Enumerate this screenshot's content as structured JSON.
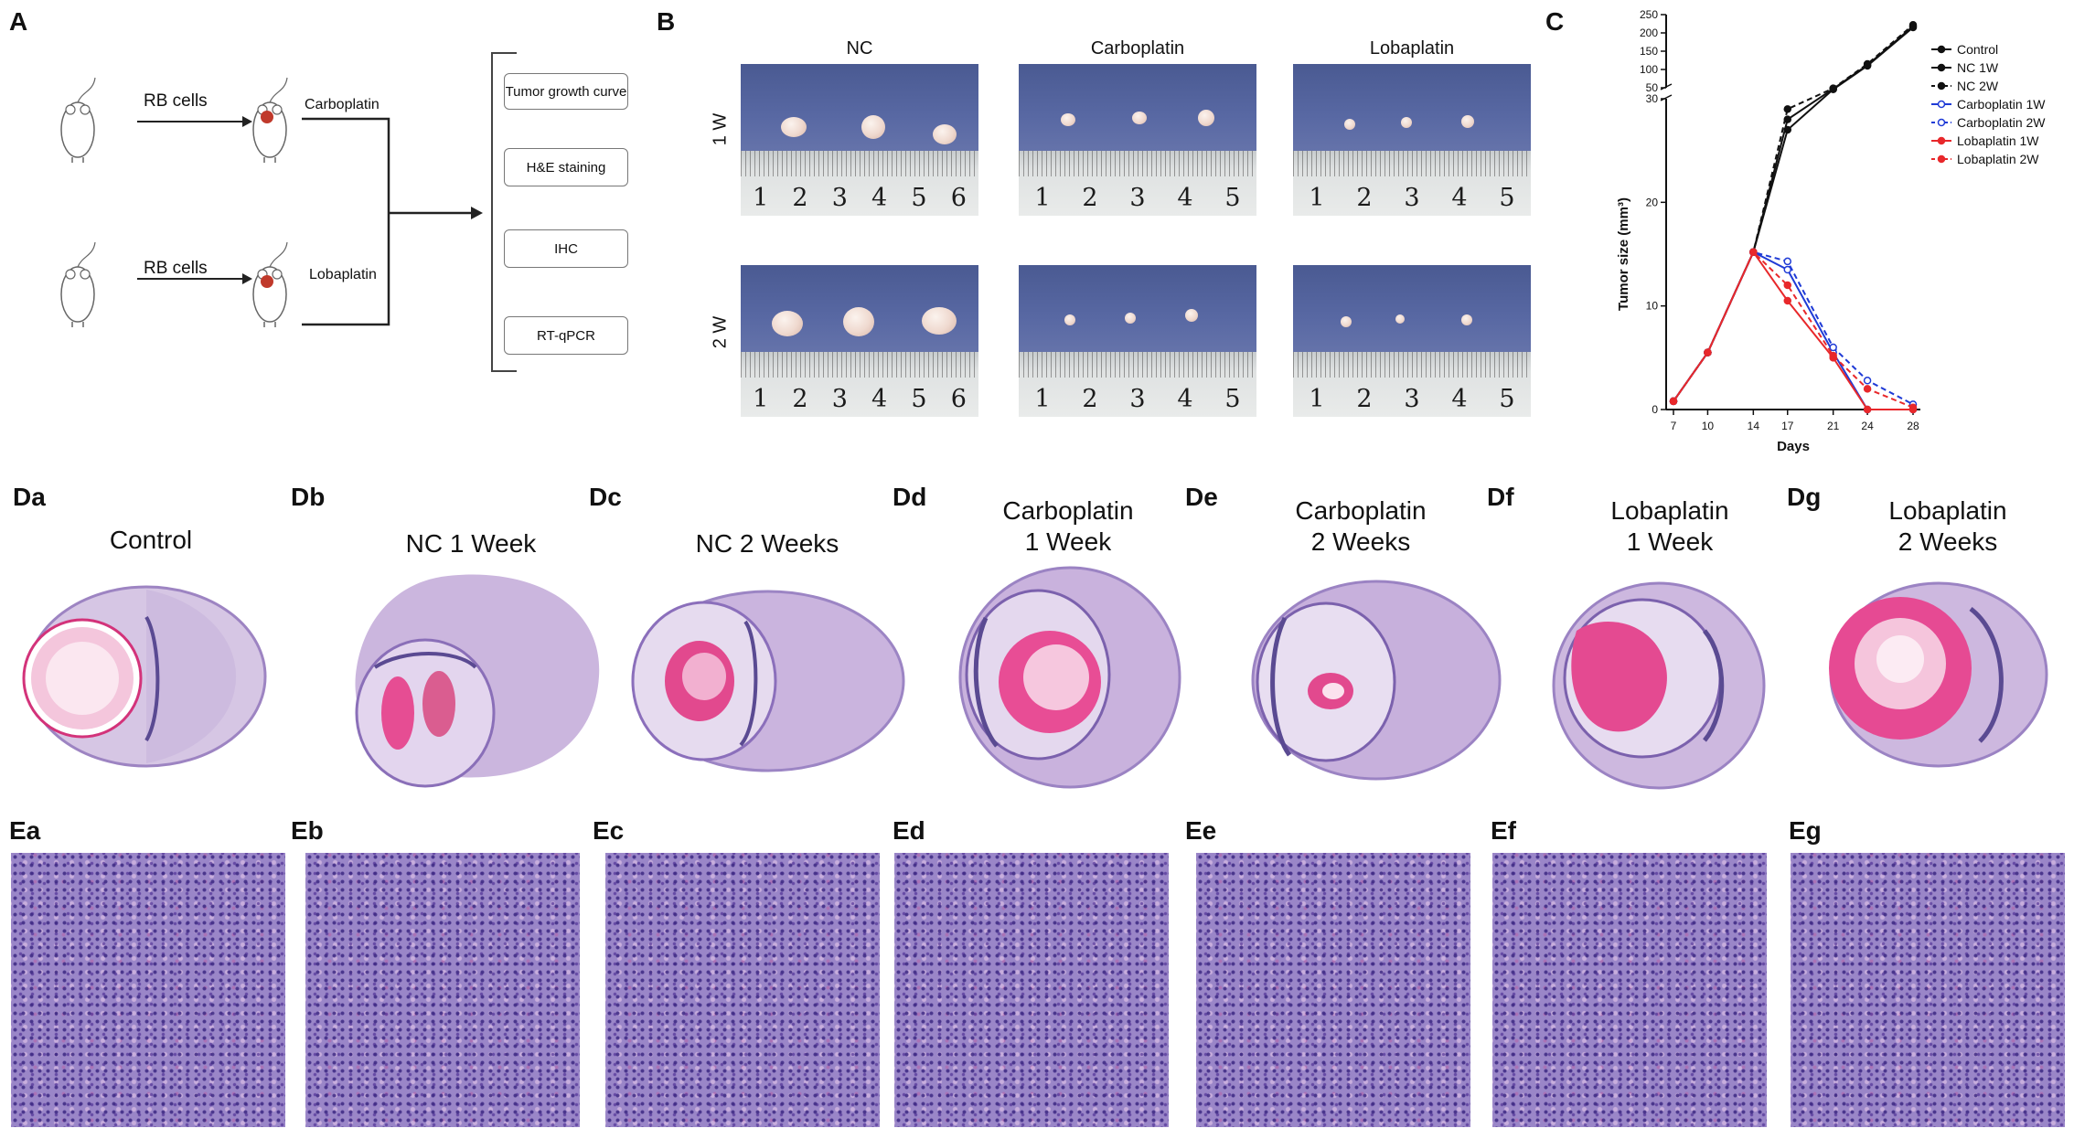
{
  "panel_labels": {
    "A": "A",
    "B": "B",
    "C": "C",
    "Da": "Da",
    "Db": "Db",
    "Dc": "Dc",
    "Dd": "Dd",
    "De": "De",
    "Df": "Df",
    "Dg": "Dg",
    "Ea": "Ea",
    "Eb": "Eb",
    "Ec": "Ec",
    "Ed": "Ed",
    "Ee": "Ee",
    "Ef": "Ef",
    "Eg": "Eg"
  },
  "panel_a": {
    "arrow_label_1": "RB cells",
    "arrow_label_2": "RB cells",
    "treatment_1": "Carboplatin",
    "treatment_2": "Lobaplatin",
    "boxes": [
      "Tumor growth curve",
      "H&E staining",
      "IHC",
      "RT-qPCR"
    ],
    "colors": {
      "tumor": "#c0392b",
      "line": "#222222"
    }
  },
  "panel_b": {
    "columns": [
      "NC",
      "Carboplatin",
      "Lobaplatin"
    ],
    "rows": [
      "1 W",
      "2 W"
    ],
    "ruler_numbers": {
      "NC": [
        "1",
        "2",
        "3",
        "4",
        "5",
        "6"
      ],
      "Carboplatin": [
        "1",
        "2",
        "3",
        "4",
        "5"
      ],
      "Lobaplatin": [
        "1",
        "2",
        "3",
        "4",
        "5"
      ]
    },
    "colors": {
      "background": "#52619d",
      "tumor": "#f0dcd2"
    }
  },
  "panel_d": {
    "titles": [
      "Control",
      "NC 1 Week",
      "NC 2 Weeks",
      "Carboplatin\n1 Week",
      "Carboplatin\n2 Weeks",
      "Lobaplatin\n1 Week",
      "Lobaplatin\n2 Weeks"
    ]
  },
  "chart_data": {
    "type": "line",
    "xlabel": "Days",
    "ylabel": "Tumor size (mm³)",
    "x": [
      7,
      10,
      14,
      17,
      21,
      24,
      28
    ],
    "y_axis": {
      "type": "broken",
      "lower_range": [
        0,
        30
      ],
      "lower_ticks": [
        0,
        10,
        20,
        30
      ],
      "upper_range": [
        50,
        250
      ],
      "upper_ticks": [
        50,
        100,
        150,
        200,
        250
      ]
    },
    "legend_position": "top-right",
    "series": [
      {
        "name": "Control",
        "color": "#111111",
        "dash": false,
        "values": [
          0.8,
          5.5,
          15.2,
          28,
          48,
          112,
          218
        ]
      },
      {
        "name": "NC 1W",
        "color": "#111111",
        "dash": false,
        "values": [
          0.8,
          5.5,
          15.2,
          27,
          47,
          110,
          215
        ]
      },
      {
        "name": "NC 2W",
        "color": "#111111",
        "dash": true,
        "values": [
          0.8,
          5.5,
          15.2,
          29,
          49,
          115,
          222
        ]
      },
      {
        "name": "Carboplatin 1W",
        "color": "#1f3bd6",
        "dash": false,
        "values": [
          0.8,
          5.5,
          15.2,
          13.5,
          5.5,
          0,
          0
        ]
      },
      {
        "name": "Carboplatin 2W",
        "color": "#1f3bd6",
        "dash": true,
        "values": [
          0.8,
          5.5,
          15.2,
          14.3,
          6.0,
          2.8,
          0.5
        ]
      },
      {
        "name": "Lobaplatin 1W",
        "color": "#e8282b",
        "dash": false,
        "values": [
          0.8,
          5.5,
          15.2,
          10.5,
          5.0,
          0,
          0
        ]
      },
      {
        "name": "Lobaplatin 2W",
        "color": "#e8282b",
        "dash": true,
        "values": [
          0.8,
          5.5,
          15.2,
          12.0,
          5.2,
          2.0,
          0.2
        ]
      }
    ]
  }
}
